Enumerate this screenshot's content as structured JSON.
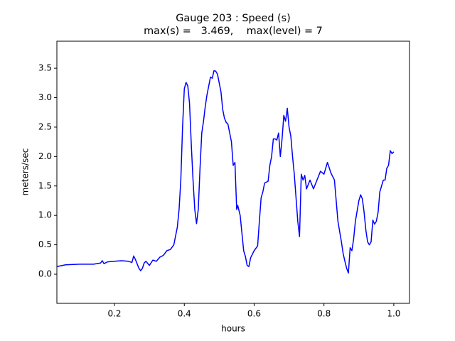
{
  "chart_data": {
    "type": "line",
    "title": "Gauge 203 : Speed (s)",
    "subtitle": "max(s) =   3.469,    max(level) = 7",
    "x_label": "hours",
    "y_label": "meters/sec",
    "xlim": [
      0.035,
      1.045
    ],
    "ylim": [
      -0.495,
      3.96
    ],
    "xticks": [
      0.2,
      0.4,
      0.6,
      0.8,
      {
        "value": 1.0,
        "label": "1.0"
      }
    ],
    "yticks": [
      {
        "value": 0,
        "label": "0.0"
      },
      0.5,
      {
        "value": 1,
        "label": "1.0"
      },
      1.5,
      {
        "value": 2,
        "label": "2.0"
      },
      2.5,
      {
        "value": 3,
        "label": "3.0"
      },
      3.5
    ],
    "grid": false,
    "series": [
      {
        "color": "#0000ff",
        "x": [
          0.035,
          0.06,
          0.1,
          0.14,
          0.16,
          0.165,
          0.17,
          0.18,
          0.2,
          0.22,
          0.24,
          0.25,
          0.255,
          0.26,
          0.27,
          0.275,
          0.28,
          0.285,
          0.29,
          0.3,
          0.31,
          0.32,
          0.33,
          0.34,
          0.35,
          0.36,
          0.37,
          0.375,
          0.38,
          0.385,
          0.39,
          0.395,
          0.4,
          0.405,
          0.41,
          0.415,
          0.42,
          0.425,
          0.43,
          0.435,
          0.44,
          0.445,
          0.45,
          0.455,
          0.46,
          0.465,
          0.47,
          0.475,
          0.48,
          0.485,
          0.49,
          0.495,
          0.5,
          0.505,
          0.51,
          0.515,
          0.52,
          0.525,
          0.53,
          0.535,
          0.54,
          0.545,
          0.55,
          0.553,
          0.56,
          0.565,
          0.57,
          0.575,
          0.58,
          0.585,
          0.59,
          0.6,
          0.61,
          0.615,
          0.62,
          0.625,
          0.63,
          0.64,
          0.645,
          0.65,
          0.655,
          0.66,
          0.665,
          0.67,
          0.675,
          0.68,
          0.685,
          0.69,
          0.695,
          0.7,
          0.705,
          0.71,
          0.715,
          0.72,
          0.725,
          0.73,
          0.735,
          0.74,
          0.745,
          0.75,
          0.76,
          0.77,
          0.78,
          0.79,
          0.8,
          0.81,
          0.82,
          0.83,
          0.835,
          0.84,
          0.85,
          0.855,
          0.86,
          0.865,
          0.87,
          0.875,
          0.88,
          0.885,
          0.89,
          0.9,
          0.905,
          0.91,
          0.915,
          0.92,
          0.925,
          0.93,
          0.935,
          0.94,
          0.945,
          0.95,
          0.955,
          0.96,
          0.965,
          0.97,
          0.975,
          0.98,
          0.985,
          0.99,
          0.995,
          1.0
        ],
        "values": [
          0.13,
          0.16,
          0.17,
          0.17,
          0.19,
          0.23,
          0.18,
          0.21,
          0.22,
          0.23,
          0.22,
          0.2,
          0.31,
          0.25,
          0.1,
          0.06,
          0.1,
          0.19,
          0.22,
          0.15,
          0.24,
          0.22,
          0.29,
          0.32,
          0.4,
          0.42,
          0.5,
          0.65,
          0.8,
          1.1,
          1.6,
          2.5,
          3.15,
          3.26,
          3.2,
          2.9,
          2.2,
          1.6,
          1.1,
          0.86,
          1.1,
          1.8,
          2.4,
          2.6,
          2.85,
          3.05,
          3.2,
          3.35,
          3.33,
          3.46,
          3.45,
          3.4,
          3.25,
          3.1,
          2.8,
          2.65,
          2.58,
          2.55,
          2.4,
          2.25,
          1.85,
          1.9,
          1.1,
          1.17,
          1.0,
          0.7,
          0.4,
          0.3,
          0.15,
          0.13,
          0.28,
          0.4,
          0.48,
          0.9,
          1.3,
          1.4,
          1.55,
          1.58,
          1.85,
          2.0,
          2.3,
          2.3,
          2.28,
          2.4,
          2.0,
          2.3,
          2.7,
          2.6,
          2.82,
          2.5,
          2.35,
          2.0,
          1.7,
          1.3,
          0.9,
          0.64,
          1.7,
          1.6,
          1.68,
          1.45,
          1.6,
          1.45,
          1.6,
          1.75,
          1.7,
          1.9,
          1.72,
          1.6,
          1.25,
          0.9,
          0.55,
          0.35,
          0.22,
          0.1,
          0.02,
          0.45,
          0.4,
          0.6,
          0.9,
          1.25,
          1.35,
          1.28,
          1.05,
          0.75,
          0.55,
          0.5,
          0.55,
          0.92,
          0.85,
          0.9,
          1.05,
          1.4,
          1.5,
          1.6,
          1.6,
          1.8,
          1.85,
          2.1,
          2.05,
          2.08
        ]
      }
    ]
  }
}
